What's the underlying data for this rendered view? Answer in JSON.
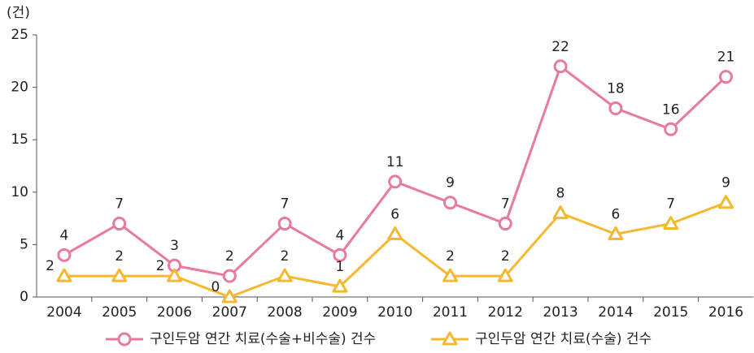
{
  "chart_data": {
    "type": "line",
    "y_unit": "(건)",
    "categories": [
      "2004",
      "2005",
      "2006",
      "2007",
      "2008",
      "2009",
      "2010",
      "2011",
      "2012",
      "2013",
      "2014",
      "2015",
      "2016"
    ],
    "series": [
      {
        "name": "구인두암 연간 치료(수술+비수술) 건수",
        "color": "#e8799f",
        "marker": "circle",
        "values": [
          4,
          7,
          3,
          2,
          7,
          4,
          11,
          9,
          7,
          22,
          18,
          16,
          21
        ]
      },
      {
        "name": "구인두암 연간 치료(수술) 건수",
        "color": "#f5b82e",
        "marker": "triangle",
        "values": [
          2,
          2,
          2,
          0,
          2,
          1,
          6,
          2,
          2,
          8,
          6,
          7,
          9
        ]
      }
    ],
    "ylim": [
      0,
      25
    ],
    "yticks": [
      0,
      5,
      10,
      15,
      20,
      25
    ],
    "grid": false,
    "legend": "bottom"
  }
}
